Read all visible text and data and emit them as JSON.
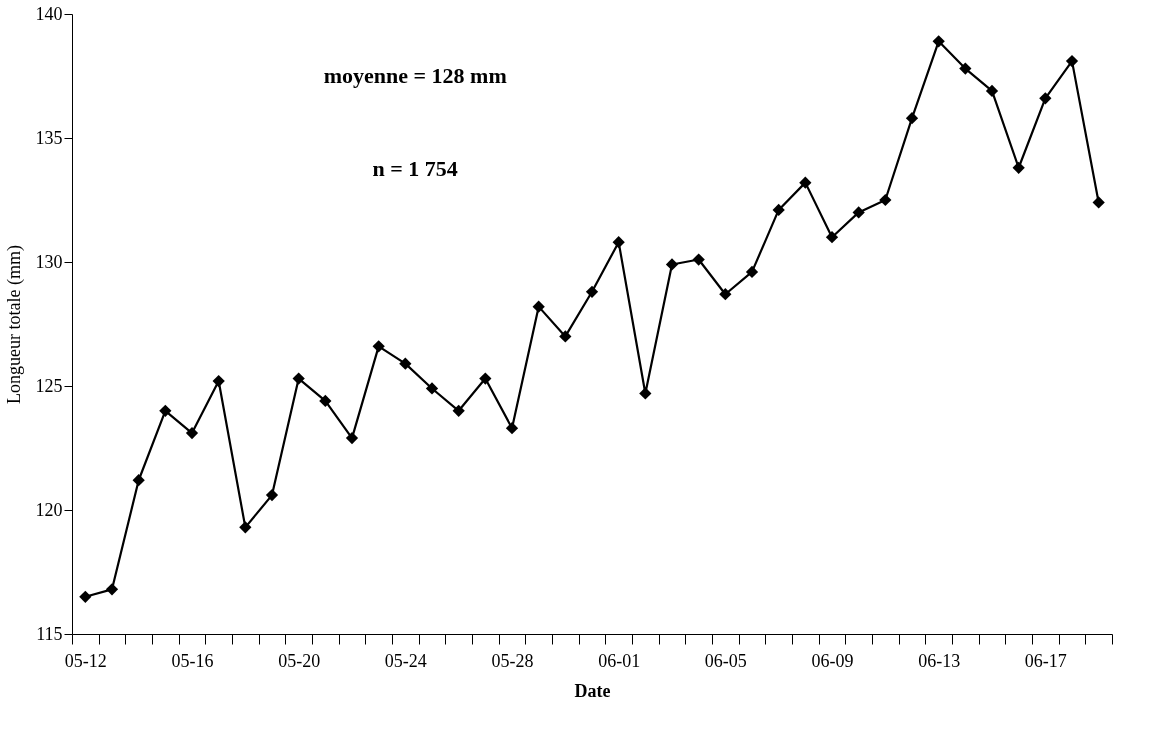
{
  "chart_data": {
    "type": "line",
    "xlabel": "Date",
    "ylabel": "Longueur totale (mm)",
    "annotations": [
      "moyenne = 128 mm",
      "n = 1 754"
    ],
    "categories": [
      "05-12",
      null,
      null,
      null,
      "05-16",
      null,
      null,
      null,
      "05-20",
      null,
      null,
      null,
      "05-24",
      null,
      null,
      null,
      "05-28",
      null,
      null,
      null,
      "06-01",
      null,
      null,
      null,
      "06-05",
      null,
      null,
      null,
      "06-09",
      null,
      null,
      null,
      "06-13",
      null,
      null,
      null,
      "06-17",
      null,
      null
    ],
    "series": [
      {
        "color": "#000000",
        "values": [
          116.5,
          116.8,
          121.2,
          124.0,
          123.1,
          125.2,
          119.3,
          120.6,
          125.3,
          124.4,
          122.9,
          126.6,
          125.9,
          124.9,
          124.0,
          125.3,
          123.3,
          128.2,
          127.0,
          128.8,
          130.8,
          124.7,
          129.9,
          130.1,
          128.7,
          129.6,
          132.1,
          133.2,
          131.0,
          132.0,
          132.5,
          135.8,
          138.9,
          137.8,
          136.9,
          133.8,
          136.6,
          138.1,
          132.4
        ]
      }
    ],
    "ylim": [
      115,
      140
    ],
    "yticks": [
      115,
      120,
      125,
      130,
      135,
      140
    ],
    "grid": false,
    "marker": "diamond",
    "line_style": "solid"
  }
}
